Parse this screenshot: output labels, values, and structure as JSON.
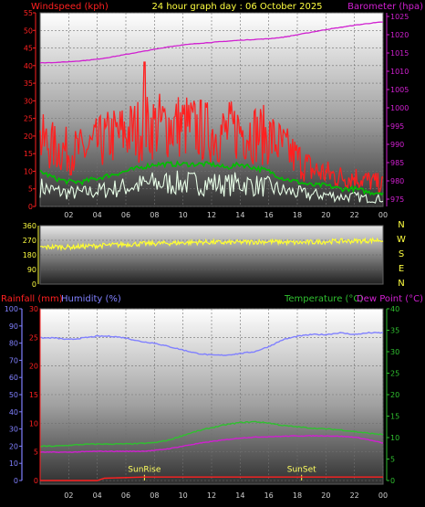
{
  "header": {
    "title": "24 hour graph day : 06 October 2025",
    "left_label": "Windspeed (kph)",
    "right_label": "Barometer (hpa)"
  },
  "colors": {
    "windspeed": "#ff2020",
    "avg_wind": "#00c000",
    "wind_light": "#e8ffe8",
    "barometer": "#d020d0",
    "direction": "#ffff30",
    "rainfall": "#ff2020",
    "humidity": "#8080ff",
    "temperature": "#30c030",
    "dewpoint": "#d020d0",
    "sun": "#ffff60"
  },
  "chart_data": [
    {
      "type": "line",
      "x_ticks": [
        "02",
        "04",
        "06",
        "08",
        "10",
        "12",
        "14",
        "16",
        "18",
        "20",
        "22",
        "00"
      ],
      "left_axis": {
        "label": "Windspeed (kph)",
        "ticks": [
          0,
          5,
          10,
          15,
          20,
          25,
          30,
          35,
          40,
          45,
          50,
          55
        ],
        "ylim": [
          0,
          55
        ]
      },
      "right_axis": {
        "label": "Barometer (hpa)",
        "ticks": [
          975,
          980,
          985,
          990,
          995,
          1000,
          1005,
          1010,
          1015,
          1020,
          1025
        ],
        "ylim": [
          973,
          1026
        ]
      },
      "series": [
        {
          "name": "Windspeed (kph)",
          "x": [
            0,
            1,
            2,
            3,
            4,
            5,
            6,
            7,
            8,
            9,
            10,
            11,
            12,
            13,
            14,
            15,
            16,
            17,
            18,
            19,
            20,
            21,
            22,
            23,
            24
          ],
          "values": [
            18,
            16,
            15,
            15,
            17,
            19,
            20,
            21,
            22,
            22,
            22,
            21,
            20,
            20,
            21,
            20,
            19,
            16,
            13,
            10,
            9,
            8,
            8,
            7,
            6
          ]
        },
        {
          "name": "",
          "x": [
            0,
            1,
            2,
            3,
            4,
            5,
            6,
            7,
            8,
            9,
            10,
            11,
            12,
            13,
            14,
            15,
            16,
            17,
            18,
            19,
            20,
            21,
            22,
            23,
            24
          ],
          "values": [
            10,
            8,
            7,
            7,
            8,
            9,
            10,
            11,
            12,
            12,
            12,
            12,
            12,
            11,
            12,
            11,
            10,
            8,
            7,
            6,
            6,
            5,
            5,
            4,
            4
          ]
        },
        {
          "name": "Barometer (hpa)",
          "x": [
            0,
            1,
            2,
            3,
            4,
            5,
            6,
            7,
            8,
            9,
            10,
            11,
            12,
            13,
            14,
            15,
            16,
            17,
            18,
            19,
            20,
            21,
            22,
            23,
            24
          ],
          "values": [
            1012.3,
            1012.4,
            1012.6,
            1012.9,
            1013.3,
            1013.9,
            1014.6,
            1015.3,
            1016,
            1016.7,
            1017.2,
            1017.6,
            1017.9,
            1018.2,
            1018.5,
            1018.7,
            1018.9,
            1019.3,
            1020,
            1020.7,
            1021.4,
            1022,
            1022.6,
            1023.1,
            1023.5
          ]
        }
      ],
      "annotations": [
        {
          "x": 7.3,
          "label": "",
          "value": 41
        }
      ]
    },
    {
      "type": "line",
      "right_labels": [
        "N",
        "W",
        "S",
        "E",
        "N"
      ],
      "axis": {
        "ticks": [
          0,
          90,
          180,
          270,
          360
        ],
        "ylim": [
          0,
          360
        ]
      },
      "series": [
        {
          "name": "",
          "x": [
            0,
            1,
            2,
            3,
            4,
            5,
            6,
            7,
            8,
            9,
            10,
            11,
            12,
            13,
            14,
            15,
            16,
            17,
            18,
            19,
            20,
            21,
            22,
            23,
            24
          ],
          "values": [
            225,
            230,
            228,
            232,
            236,
            240,
            245,
            248,
            250,
            252,
            255,
            258,
            258,
            255,
            258,
            260,
            262,
            258,
            255,
            258,
            262,
            265,
            265,
            268,
            272
          ]
        }
      ]
    },
    {
      "type": "line",
      "x_ticks": [
        "02",
        "04",
        "06",
        "08",
        "10",
        "12",
        "14",
        "16",
        "18",
        "20",
        "22",
        "00"
      ],
      "labels": {
        "rainfall": "Rainfall (mm)",
        "humidity": "Humidity (%)",
        "temperature": "Temperature (°C)",
        "dewpoint": "Dew Point (°C)"
      },
      "humidity_axis": {
        "ticks": [
          0,
          10,
          20,
          30,
          40,
          50,
          60,
          70,
          80,
          90,
          100
        ],
        "ylim": [
          0,
          100
        ]
      },
      "rain_axis": {
        "ticks": [
          0,
          5,
          10,
          15,
          20,
          25,
          30
        ],
        "ylim": [
          0,
          30
        ]
      },
      "temp_axis": {
        "ticks": [
          0,
          5,
          10,
          15,
          20,
          25,
          30,
          35,
          40
        ],
        "ylim": [
          0,
          40
        ]
      },
      "series": [
        {
          "name": "Rainfall (mm)",
          "x": [
            0,
            4,
            4.5,
            7.3,
            12,
            16,
            24
          ],
          "values": [
            0,
            0,
            0.4,
            0.6,
            0.6,
            0.6,
            0.6
          ]
        },
        {
          "name": "Humidity (%)",
          "x": [
            0,
            1,
            2,
            3,
            4,
            5,
            6,
            7,
            8,
            9,
            10,
            11,
            12,
            13,
            14,
            15,
            16,
            17,
            18,
            19,
            20,
            21,
            22,
            23,
            24
          ],
          "values": [
            83,
            83,
            82,
            83,
            84,
            84,
            83,
            81,
            80,
            78,
            76,
            74,
            73,
            73,
            74,
            75,
            78,
            82,
            84,
            85,
            85,
            86,
            85,
            86,
            86
          ]
        },
        {
          "name": "Temperature (°C)",
          "x": [
            0,
            1,
            2,
            3,
            4,
            5,
            6,
            7,
            8,
            9,
            10,
            11,
            12,
            13,
            14,
            15,
            16,
            17,
            18,
            19,
            20,
            21,
            22,
            23,
            24
          ],
          "values": [
            8.0,
            8.0,
            8.2,
            8.4,
            8.5,
            8.5,
            8.5,
            8.6,
            8.8,
            9.4,
            10.5,
            11.5,
            12.3,
            13.0,
            13.5,
            13.7,
            13.4,
            12.8,
            12.5,
            12.2,
            12.0,
            11.8,
            11.4,
            11.0,
            10.7
          ]
        },
        {
          "name": "Dew Point (°C)",
          "x": [
            0,
            1,
            2,
            3,
            4,
            5,
            6,
            7,
            8,
            9,
            10,
            11,
            12,
            13,
            14,
            15,
            16,
            17,
            18,
            19,
            20,
            21,
            22,
            23,
            24
          ],
          "values": [
            6.6,
            6.6,
            6.6,
            6.7,
            6.8,
            6.8,
            6.8,
            6.8,
            7.0,
            7.4,
            8.0,
            8.6,
            9.1,
            9.5,
            9.9,
            10.1,
            10.2,
            10.3,
            10.4,
            10.4,
            10.4,
            10.3,
            10.1,
            9.5,
            8.7
          ]
        }
      ],
      "annotations": [
        {
          "label": "SunRise",
          "x": 7.3
        },
        {
          "label": "SunSet",
          "x": 18.3
        }
      ]
    }
  ]
}
